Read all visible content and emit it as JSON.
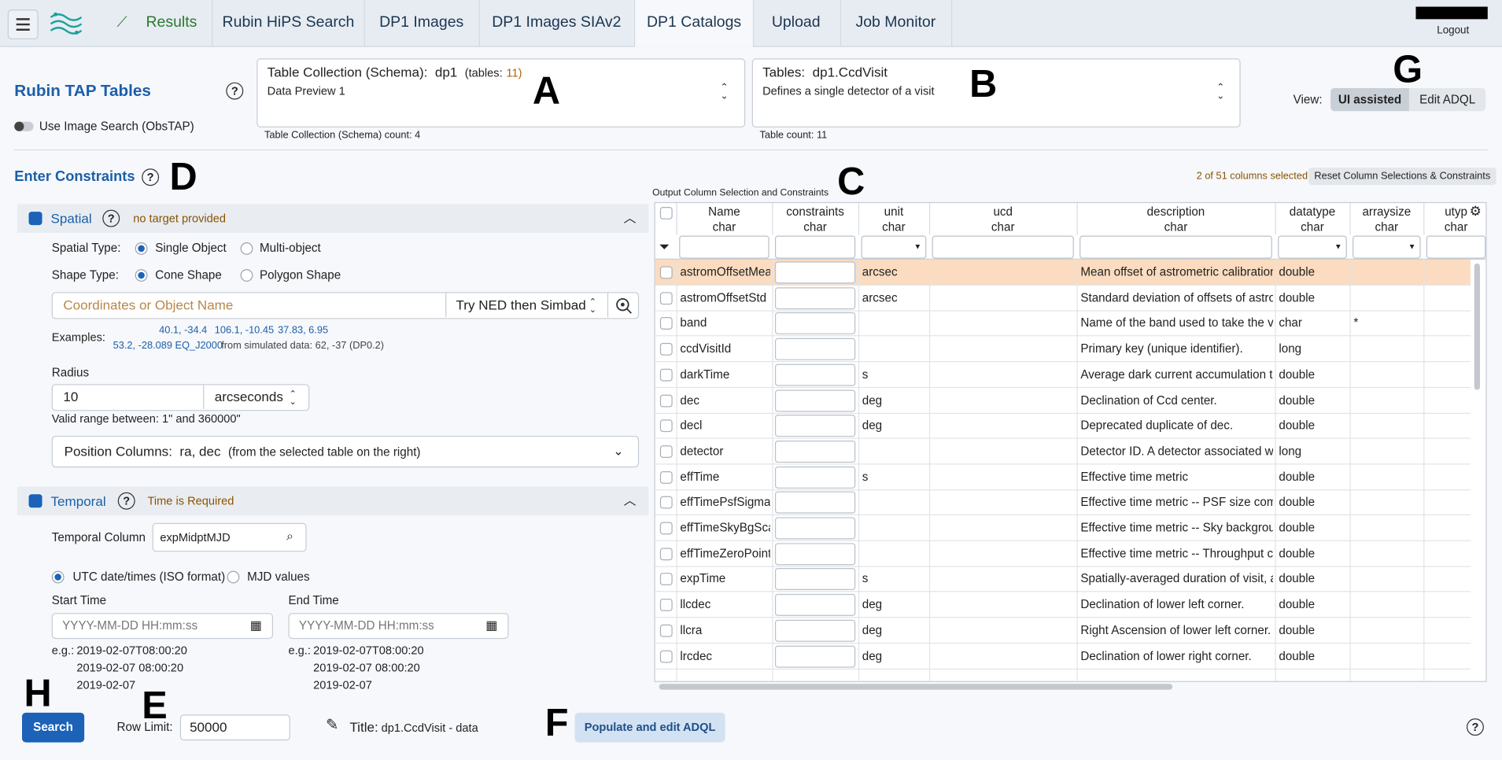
{
  "nav": {
    "tabs": [
      "Results",
      "Rubin HiPS Search",
      "DP1 Images",
      "DP1 Images SIAv2",
      "DP1 Catalogs",
      "Upload",
      "Job Monitor"
    ],
    "logout": "Logout"
  },
  "header": {
    "title": "Rubin TAP Tables",
    "toggle": "Use Image Search (ObsTAP)"
  },
  "schema": {
    "label": "Table Collection (Schema):",
    "name": "dp1",
    "tables_label": "(tables:",
    "tables_count": "11)",
    "desc": "Data Preview 1",
    "count": "Table Collection (Schema) count: 4"
  },
  "table_select": {
    "label": "Tables:",
    "name": "dp1.CcdVisit",
    "desc": "Defines a single detector of a visit",
    "count": "Table count: 11"
  },
  "view": {
    "label": "View:",
    "options": [
      "UI assisted",
      "Edit ADQL"
    ]
  },
  "markers": [
    "A",
    "B",
    "C",
    "D",
    "E",
    "F",
    "G",
    "H"
  ],
  "constraints": {
    "title": "Enter Constraints",
    "spatial": {
      "label": "Spatial",
      "status": "no target provided",
      "spatial_type_label": "Spatial Type:",
      "spatial_types": [
        "Single Object",
        "Multi-object"
      ],
      "shape_type_label": "Shape Type:",
      "shape_types": [
        "Cone Shape",
        "Polygon Shape"
      ],
      "placeholder": "Coordinates or Object Name",
      "resolver": "Try NED then Simbad",
      "examples_label": "Examples:",
      "examples": [
        "40.1, -34.4",
        "106.1, -10.45",
        "37.83, 6.95",
        "53.2, -28.089 EQ_J2000"
      ],
      "examples_note": "from simulated data: 62, -37 (DP0.2)",
      "radius_label": "Radius",
      "radius": "10",
      "radius_unit": "arcseconds",
      "valid_range": "Valid range between: 1\" and 360000\"",
      "position_label": "Position Columns:",
      "position_value": "ra, dec",
      "position_note": "(from the selected table on the right)"
    },
    "temporal": {
      "label": "Temporal",
      "status": "Time is Required",
      "column_label": "Temporal Column",
      "column": "expMidptMJD",
      "formats": [
        "UTC date/times (ISO format)",
        "MJD values"
      ],
      "start_label": "Start Time",
      "end_label": "End Time",
      "placeholder": "YYYY-MM-DD HH:mm:ss",
      "eg_label": "e.g.:",
      "examples": [
        "2019-02-07T08:00:20",
        "2019-02-07 08:00:20",
        "2019-02-07"
      ]
    }
  },
  "columns": {
    "title": "Output Column Selection and Constraints",
    "selected": "2 of 51 columns selected",
    "reset": "Reset Column Selections & Constraints",
    "headers": [
      {
        "name": "Name",
        "type": "char"
      },
      {
        "name": "constraints",
        "type": "char"
      },
      {
        "name": "unit",
        "type": "char"
      },
      {
        "name": "ucd",
        "type": "char"
      },
      {
        "name": "description",
        "type": "char"
      },
      {
        "name": "datatype",
        "type": "char"
      },
      {
        "name": "arraysize",
        "type": "char"
      },
      {
        "name": "utyp",
        "type": "char"
      }
    ],
    "rows": [
      {
        "name": "astromOffsetMean",
        "unit": "arcsec",
        "description": "Mean offset of astrometric calibration m",
        "datatype": "double"
      },
      {
        "name": "astromOffsetStd",
        "unit": "arcsec",
        "description": "Standard deviation of offsets of astrome",
        "datatype": "double"
      },
      {
        "name": "band",
        "description": "Name of the band used to take the visit",
        "datatype": "char",
        "arraysize": "*"
      },
      {
        "name": "ccdVisitId",
        "description": "Primary key (unique identifier).",
        "datatype": "long"
      },
      {
        "name": "darkTime",
        "unit": "s",
        "description": "Average dark current accumulation time",
        "datatype": "double"
      },
      {
        "name": "dec",
        "unit": "deg",
        "description": "Declination of Ccd center.",
        "datatype": "double"
      },
      {
        "name": "decl",
        "unit": "deg",
        "description": "Deprecated duplicate of dec.",
        "datatype": "double"
      },
      {
        "name": "detector",
        "description": "Detector ID. A detector associated with a",
        "datatype": "long"
      },
      {
        "name": "effTime",
        "unit": "s",
        "description": "Effective time metric",
        "datatype": "double"
      },
      {
        "name": "effTimePsfSigmaS",
        "description": "Effective time metric -- PSF size compor",
        "datatype": "double"
      },
      {
        "name": "effTimeSkyBgScal",
        "description": "Effective time metric -- Sky background",
        "datatype": "double"
      },
      {
        "name": "effTimeZeroPointS",
        "description": "Effective time metric -- Throughput com",
        "datatype": "double"
      },
      {
        "name": "expTime",
        "unit": "s",
        "description": "Spatially-averaged duration of visit, acc",
        "datatype": "double"
      },
      {
        "name": "llcdec",
        "unit": "deg",
        "description": "Declination of lower left corner.",
        "datatype": "double"
      },
      {
        "name": "llcra",
        "unit": "deg",
        "description": "Right Ascension of lower left corner.",
        "datatype": "double"
      },
      {
        "name": "lrcdec",
        "unit": "deg",
        "description": "Declination of lower right corner.",
        "datatype": "double"
      }
    ]
  },
  "footer": {
    "search": "Search",
    "row_limit_label": "Row Limit:",
    "row_limit": "50000",
    "title_label": "Title:",
    "title_value": "dp1.CcdVisit - data",
    "populate": "Populate and edit ADQL"
  }
}
